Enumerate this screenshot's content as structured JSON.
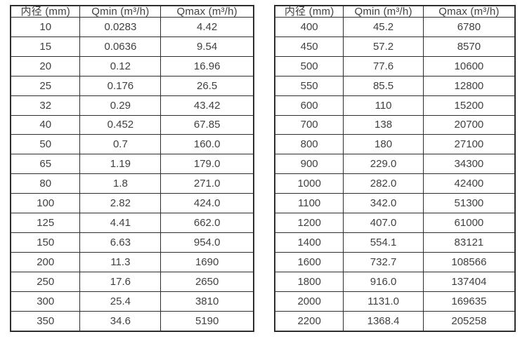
{
  "colors": {
    "background": "#ffffff",
    "border": "#2e2e2e",
    "text": "#404040"
  },
  "chart_data": [
    {
      "type": "table",
      "title": "",
      "headers": [
        "内径 (mm)",
        "Qmin (m³/h)",
        "Qmax (m³/h)"
      ],
      "rows": [
        [
          "10",
          "0.0283",
          "4.42"
        ],
        [
          "15",
          "0.0636",
          "9.54"
        ],
        [
          "20",
          "0.12",
          "16.96"
        ],
        [
          "25",
          "0.176",
          "26.5"
        ],
        [
          "32",
          "0.29",
          "43.42"
        ],
        [
          "40",
          "0.452",
          "67.85"
        ],
        [
          "50",
          "0.7",
          "160.0"
        ],
        [
          "65",
          "1.19",
          "179.0"
        ],
        [
          "80",
          "1.8",
          "271.0"
        ],
        [
          "100",
          "2.82",
          "424.0"
        ],
        [
          "125",
          "4.41",
          "662.0"
        ],
        [
          "150",
          "6.63",
          "954.0"
        ],
        [
          "200",
          "11.3",
          "1690"
        ],
        [
          "250",
          "17.6",
          "2650"
        ],
        [
          "300",
          "25.4",
          "3810"
        ],
        [
          "350",
          "34.6",
          "5190"
        ]
      ]
    },
    {
      "type": "table",
      "title": "",
      "headers": [
        "内径 (mm)",
        "Qmin (m³/h)",
        "Qmax (m³/h)"
      ],
      "rows": [
        [
          "400",
          "45.2",
          "6780"
        ],
        [
          "450",
          "57.2",
          "8570"
        ],
        [
          "500",
          "77.6",
          "10600"
        ],
        [
          "550",
          "85.5",
          "12800"
        ],
        [
          "600",
          "110",
          "15200"
        ],
        [
          "700",
          "138",
          "20700"
        ],
        [
          "800",
          "180",
          "27100"
        ],
        [
          "900",
          "229.0",
          "34300"
        ],
        [
          "1000",
          "282.0",
          "42400"
        ],
        [
          "1100",
          "342.0",
          "51300"
        ],
        [
          "1200",
          "407.0",
          "61000"
        ],
        [
          "1400",
          "554.1",
          "83121"
        ],
        [
          "1600",
          "732.7",
          "108566"
        ],
        [
          "1800",
          "916.0",
          "137404"
        ],
        [
          "2000",
          "1131.0",
          "169635"
        ],
        [
          "2200",
          "1368.4",
          "205258"
        ]
      ]
    }
  ]
}
